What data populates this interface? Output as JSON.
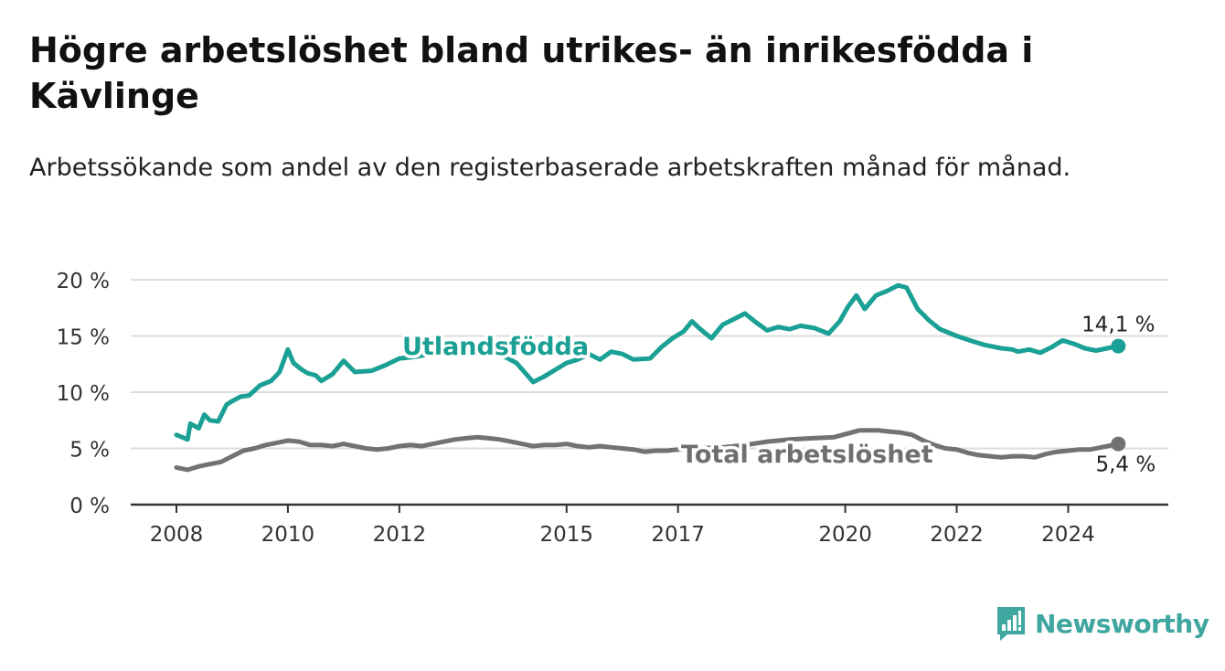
{
  "title": "Högre arbetslöshet bland utrikes- än inrikesfödda i Kävlinge",
  "subtitle": "Arbetssökande som andel av den registerbaserade arbetskraften månad för månad.",
  "brand": {
    "name": "Newsworthy",
    "icon": "newsworthy-logo-icon"
  },
  "colors": {
    "foreign_born": "#1aa094",
    "total": "#727272",
    "grid": "#dddddd",
    "axis": "#333333"
  },
  "chart_data": {
    "type": "line",
    "xlabel": "",
    "ylabel": "",
    "xlim": [
      2008.0,
      2025.6
    ],
    "ylim": [
      0,
      20
    ],
    "y_ticks": [
      0,
      5,
      10,
      15,
      20
    ],
    "y_tick_labels": [
      "0 %",
      "5 %",
      "10 %",
      "15 %",
      "20 %"
    ],
    "x_ticks": [
      2008,
      2010,
      2012,
      2015,
      2017,
      2020,
      2022,
      2024
    ],
    "x_tick_labels": [
      "2008",
      "2010",
      "2012",
      "2015",
      "2017",
      "2020",
      "2022",
      "2024"
    ],
    "grid": "horizontal",
    "legend": "inline labels on lines",
    "series": [
      {
        "name": "Utlandsfödda",
        "color": "#1aa094",
        "end_label": "14,1 %",
        "x": [
          2008.0,
          2008.2,
          2008.25,
          2008.4,
          2008.5,
          2008.6,
          2008.75,
          2008.9,
          2009.0,
          2009.15,
          2009.3,
          2009.5,
          2009.7,
          2009.85,
          2010.0,
          2010.1,
          2010.25,
          2010.35,
          2010.5,
          2010.6,
          2010.8,
          2011.0,
          2011.2,
          2011.5,
          2011.75,
          2012.0,
          2012.2,
          2012.6,
          2013.0,
          2013.4,
          2013.8,
          2014.1,
          2014.4,
          2014.6,
          2014.8,
          2015.0,
          2015.2,
          2015.4,
          2015.6,
          2015.8,
          2016.0,
          2016.2,
          2016.5,
          2016.7,
          2016.9,
          2017.1,
          2017.25,
          2017.4,
          2017.6,
          2017.8,
          2018.0,
          2018.2,
          2018.4,
          2018.6,
          2018.8,
          2019.0,
          2019.2,
          2019.45,
          2019.7,
          2019.9,
          2020.05,
          2020.2,
          2020.35,
          2020.55,
          2020.75,
          2020.95,
          2021.1,
          2021.3,
          2021.5,
          2021.7,
          2021.9,
          2022.0,
          2022.3,
          2022.5,
          2022.8,
          2023.0,
          2023.1,
          2023.3,
          2023.5,
          2023.7,
          2023.9,
          2024.1,
          2024.3,
          2024.5,
          2024.7,
          2024.9
        ],
        "values": [
          6.2,
          5.8,
          7.2,
          6.8,
          8.0,
          7.5,
          7.4,
          8.9,
          9.2,
          9.6,
          9.7,
          10.6,
          11.0,
          11.8,
          13.8,
          12.6,
          12.0,
          11.7,
          11.5,
          11.0,
          11.6,
          12.8,
          11.8,
          11.9,
          12.4,
          13.0,
          13.1,
          13.4,
          13.4,
          13.6,
          13.4,
          12.6,
          10.9,
          11.4,
          12.0,
          12.6,
          12.9,
          13.4,
          12.9,
          13.6,
          13.4,
          12.9,
          13.0,
          14.0,
          14.8,
          15.4,
          16.3,
          15.6,
          14.8,
          16.0,
          16.5,
          17.0,
          16.2,
          15.5,
          15.8,
          15.6,
          15.9,
          15.7,
          15.2,
          16.3,
          17.6,
          18.6,
          17.4,
          18.6,
          19.0,
          19.5,
          19.3,
          17.4,
          16.4,
          15.6,
          15.2,
          15.0,
          14.5,
          14.2,
          13.9,
          13.8,
          13.6,
          13.8,
          13.5,
          14.0,
          14.6,
          14.3,
          13.9,
          13.7,
          13.9,
          14.1
        ]
      },
      {
        "name": "Total arbetslöshet",
        "color": "#727272",
        "end_label": "5,4 %",
        "x": [
          2008.0,
          2008.2,
          2008.4,
          2008.6,
          2008.8,
          2009.0,
          2009.2,
          2009.4,
          2009.6,
          2009.8,
          2010.0,
          2010.2,
          2010.4,
          2010.6,
          2010.8,
          2011.0,
          2011.2,
          2011.4,
          2011.6,
          2011.8,
          2012.0,
          2012.2,
          2012.4,
          2012.6,
          2012.8,
          2013.0,
          2013.2,
          2013.4,
          2013.6,
          2013.8,
          2014.0,
          2014.2,
          2014.4,
          2014.6,
          2014.8,
          2015.0,
          2015.2,
          2015.4,
          2015.6,
          2015.8,
          2016.0,
          2016.2,
          2016.4,
          2016.6,
          2016.8,
          2017.0,
          2017.4,
          2017.8,
          2018.2,
          2018.6,
          2019.0,
          2019.4,
          2019.8,
          2020.1,
          2020.25,
          2020.4,
          2020.6,
          2020.8,
          2021.0,
          2021.2,
          2021.4,
          2021.6,
          2021.8,
          2022.0,
          2022.2,
          2022.4,
          2022.6,
          2022.8,
          2023.0,
          2023.2,
          2023.4,
          2023.6,
          2023.8,
          2024.0,
          2024.2,
          2024.4,
          2024.6,
          2024.8,
          2024.9
        ],
        "values": [
          3.3,
          3.1,
          3.4,
          3.6,
          3.8,
          4.3,
          4.8,
          5.0,
          5.3,
          5.5,
          5.7,
          5.6,
          5.3,
          5.3,
          5.2,
          5.4,
          5.2,
          5.0,
          4.9,
          5.0,
          5.2,
          5.3,
          5.2,
          5.4,
          5.6,
          5.8,
          5.9,
          6.0,
          5.9,
          5.8,
          5.6,
          5.4,
          5.2,
          5.3,
          5.3,
          5.4,
          5.2,
          5.1,
          5.2,
          5.1,
          5.0,
          4.9,
          4.7,
          4.8,
          4.8,
          4.9,
          5.0,
          5.1,
          5.3,
          5.6,
          5.8,
          5.9,
          6.0,
          6.4,
          6.6,
          6.6,
          6.6,
          6.5,
          6.4,
          6.2,
          5.7,
          5.3,
          5.0,
          4.9,
          4.6,
          4.4,
          4.3,
          4.2,
          4.3,
          4.3,
          4.2,
          4.5,
          4.7,
          4.8,
          4.9,
          4.9,
          5.1,
          5.3,
          5.4
        ]
      }
    ],
    "annotations": [
      {
        "text": "Utlandsfödda",
        "series": 0
      },
      {
        "text": "Total arbetslöshet",
        "series": 1
      }
    ]
  }
}
